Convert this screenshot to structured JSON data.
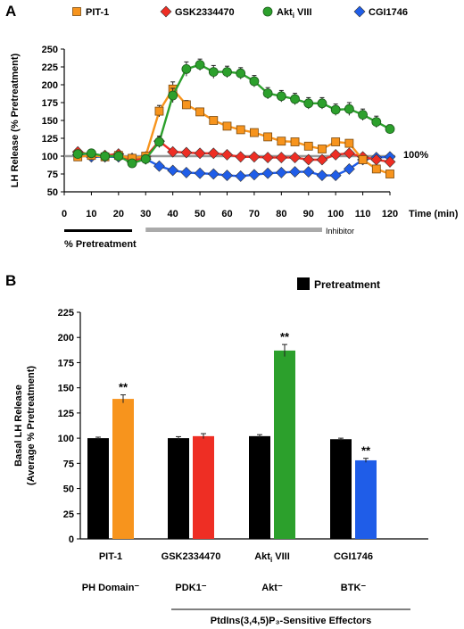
{
  "chart_data": [
    {
      "panel_label": "A",
      "type": "line",
      "xlabel": "Time (min)",
      "ylabel": "LH Release (% Pretreatment)",
      "xlim": [
        0,
        120
      ],
      "ylim": [
        50,
        250
      ],
      "x_ticks": [
        0,
        10,
        20,
        30,
        40,
        50,
        60,
        70,
        80,
        90,
        100,
        110,
        120
      ],
      "y_ticks": [
        50,
        75,
        100,
        125,
        150,
        175,
        200,
        225,
        250
      ],
      "reference_line": {
        "y": 100,
        "label": "100%",
        "color": "#999999"
      },
      "legend_position": "top",
      "x": [
        5,
        10,
        15,
        20,
        25,
        30,
        35,
        40,
        45,
        50,
        55,
        60,
        65,
        70,
        75,
        80,
        85,
        90,
        95,
        100,
        105,
        110,
        115,
        120
      ],
      "series": [
        {
          "name": "PIT-1",
          "marker": "square",
          "color": "#f7941d",
          "values": [
            99,
            101,
            99,
            101,
            97,
            100,
            163,
            194,
            172,
            162,
            150,
            142,
            137,
            133,
            127,
            121,
            120,
            114,
            110,
            120,
            118,
            95,
            82,
            75
          ],
          "errors": [
            4,
            4,
            4,
            4,
            4,
            5,
            8,
            10,
            6,
            5,
            5,
            4,
            4,
            4,
            4,
            4,
            4,
            4,
            4,
            4,
            4,
            4,
            4,
            4
          ]
        },
        {
          "name": "GSK2334470",
          "marker": "diamond",
          "color": "#ee2e24",
          "values": [
            106,
            102,
            101,
            103,
            92,
            99,
            121,
            106,
            105,
            104,
            104,
            102,
            99,
            99,
            98,
            98,
            98,
            95,
            95,
            102,
            104,
            99,
            95,
            92
          ],
          "errors": [
            3,
            3,
            3,
            3,
            3,
            3,
            5,
            3,
            3,
            3,
            3,
            3,
            3,
            3,
            3,
            3,
            3,
            3,
            3,
            3,
            3,
            3,
            3,
            3
          ]
        },
        {
          "name": "Akt VIII",
          "name_subscript": "i",
          "marker": "circle",
          "color": "#2ca02c",
          "values": [
            103,
            104,
            100,
            100,
            90,
            96,
            120,
            185,
            222,
            228,
            218,
            218,
            216,
            205,
            188,
            184,
            180,
            174,
            174,
            165,
            166,
            158,
            148,
            138
          ],
          "errors": [
            4,
            4,
            4,
            4,
            4,
            5,
            8,
            10,
            10,
            8,
            9,
            8,
            8,
            8,
            8,
            8,
            8,
            8,
            8,
            8,
            9,
            8,
            8,
            6
          ]
        },
        {
          "name": "CGI1746",
          "marker": "diamond",
          "color": "#1f5de8",
          "values": [
            102,
            99,
            99,
            99,
            97,
            96,
            86,
            80,
            77,
            76,
            75,
            73,
            72,
            74,
            76,
            77,
            78,
            78,
            73,
            73,
            82,
            95,
            98,
            99
          ],
          "errors": [
            3,
            3,
            3,
            3,
            3,
            3,
            3,
            3,
            3,
            3,
            3,
            3,
            3,
            3,
            3,
            3,
            3,
            3,
            3,
            3,
            3,
            3,
            3,
            3
          ]
        }
      ],
      "timeline_bars": [
        {
          "label": "% Pretreatment",
          "from": 0,
          "to": 25,
          "color": "#000000"
        },
        {
          "label": "Inhibitor",
          "from": 30,
          "to": 95,
          "color": "#aaaaaa"
        }
      ]
    },
    {
      "panel_label": "B",
      "type": "bar",
      "ylabel_lines": [
        "Basal LH Release",
        "(Average % Pretreatment)"
      ],
      "ylim": [
        0,
        225
      ],
      "y_ticks": [
        0,
        25,
        50,
        75,
        100,
        125,
        150,
        175,
        200,
        225
      ],
      "legend": [
        {
          "name": "Pretreatment",
          "color": "#000000"
        }
      ],
      "legend_position": "top-right",
      "groups": [
        {
          "label": "PIT-1",
          "target": "PH Domain⁻",
          "bars": [
            {
              "value": 100,
              "error": 1,
              "color": "#000000"
            },
            {
              "value": 139,
              "error": 4,
              "color": "#f7941d",
              "annotation": "**"
            }
          ]
        },
        {
          "label": "GSK2334470",
          "target": "PDK1⁻",
          "bars": [
            {
              "value": 100,
              "error": 1.5,
              "color": "#000000"
            },
            {
              "value": 102,
              "error": 2.5,
              "color": "#ee2e24",
              "annotation": ""
            }
          ]
        },
        {
          "label": "Akt VIII",
          "label_subscript": "i",
          "target": "Akt⁻",
          "bars": [
            {
              "value": 102,
              "error": 1.5,
              "color": "#000000"
            },
            {
              "value": 187,
              "error": 6,
              "color": "#2ca02c",
              "annotation": "**"
            }
          ]
        },
        {
          "label": "CGI1746",
          "target": "BTK⁻",
          "bars": [
            {
              "value": 99,
              "error": 1,
              "color": "#000000"
            },
            {
              "value": 78,
              "error": 2,
              "color": "#1f5de8",
              "annotation": "**"
            }
          ]
        }
      ],
      "footer_label": "PtdIns(3,4,5)P₃-Sensitive Effectors"
    }
  ]
}
